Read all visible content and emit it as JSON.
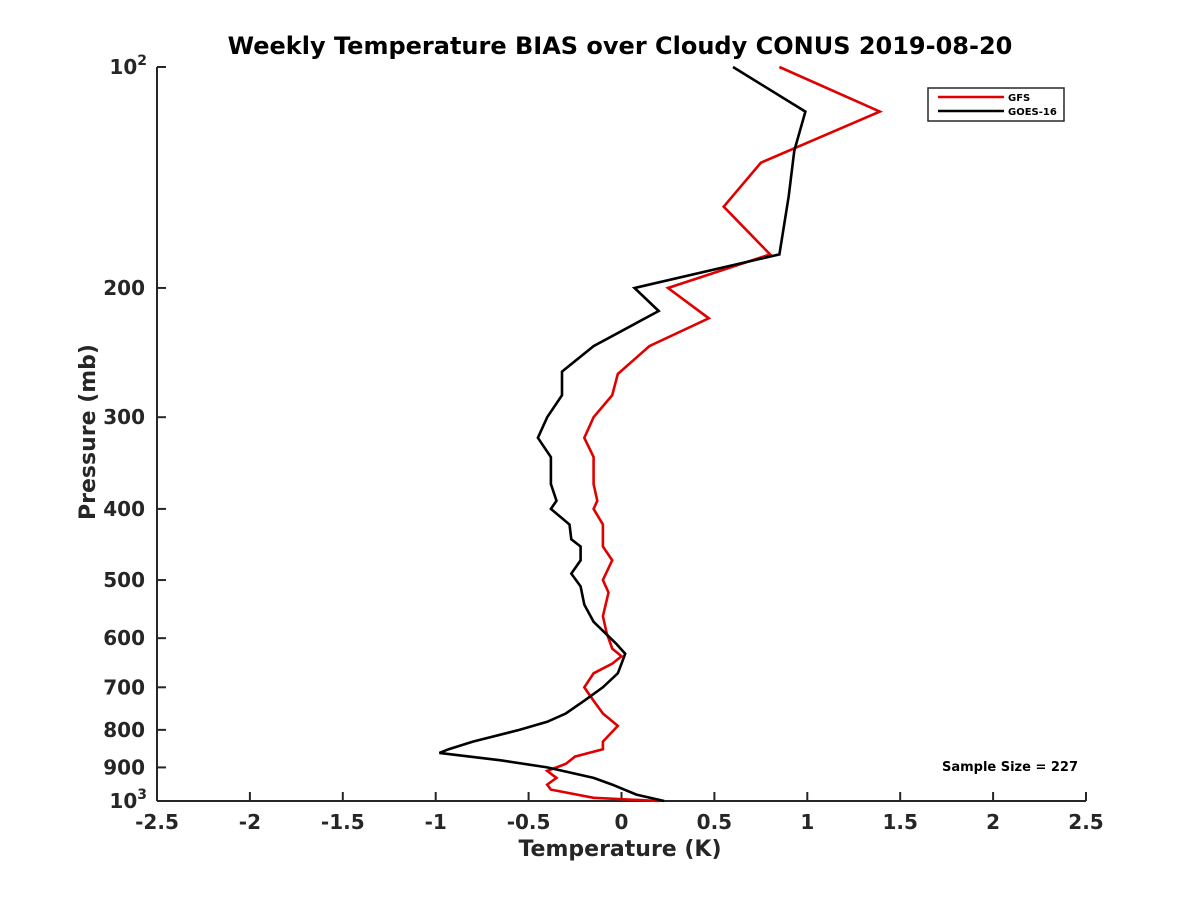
{
  "chart_data": {
    "type": "line",
    "title": "Weekly Temperature BIAS over Cloudy CONUS 2019-08-20",
    "xlabel": "Temperature (K)",
    "ylabel": "Pressure (mb)",
    "xlim": [
      -2.5,
      2.5
    ],
    "ylim": [
      1000,
      100
    ],
    "y_scale": "log",
    "grid": false,
    "legend_position": "top-right",
    "x_ticks": [
      "-2.5",
      "-2",
      "-1.5",
      "-1",
      "-0.5",
      "0",
      "0.5",
      "1",
      "1.5",
      "2",
      "2.5"
    ],
    "y_ticks": [
      {
        "value": 100,
        "label": "10",
        "sup": "2"
      },
      {
        "value": 200,
        "label": "200",
        "sup": ""
      },
      {
        "value": 300,
        "label": "300",
        "sup": ""
      },
      {
        "value": 400,
        "label": "400",
        "sup": ""
      },
      {
        "value": 500,
        "label": "500",
        "sup": ""
      },
      {
        "value": 600,
        "label": "600",
        "sup": ""
      },
      {
        "value": 700,
        "label": "700",
        "sup": ""
      },
      {
        "value": 800,
        "label": "800",
        "sup": ""
      },
      {
        "value": 900,
        "label": "900",
        "sup": ""
      },
      {
        "value": 1000,
        "label": "10",
        "sup": "3"
      }
    ],
    "annotation": "Sample Size = 227",
    "series": [
      {
        "name": "GFS",
        "color": "#e00000",
        "points": [
          [
            0.85,
            100
          ],
          [
            1.39,
            115
          ],
          [
            0.75,
            135
          ],
          [
            0.55,
            155
          ],
          [
            0.8,
            180
          ],
          [
            0.25,
            200
          ],
          [
            0.47,
            220
          ],
          [
            0.15,
            240
          ],
          [
            -0.02,
            262
          ],
          [
            -0.05,
            280
          ],
          [
            -0.15,
            300
          ],
          [
            -0.2,
            320
          ],
          [
            -0.15,
            340
          ],
          [
            -0.15,
            370
          ],
          [
            -0.13,
            390
          ],
          [
            -0.15,
            400
          ],
          [
            -0.1,
            420
          ],
          [
            -0.1,
            450
          ],
          [
            -0.05,
            470
          ],
          [
            -0.1,
            500
          ],
          [
            -0.07,
            520
          ],
          [
            -0.1,
            560
          ],
          [
            -0.08,
            590
          ],
          [
            -0.05,
            620
          ],
          [
            0,
            635
          ],
          [
            -0.05,
            650
          ],
          [
            -0.15,
            670
          ],
          [
            -0.2,
            700
          ],
          [
            -0.15,
            730
          ],
          [
            -0.1,
            760
          ],
          [
            -0.02,
            790
          ],
          [
            -0.1,
            830
          ],
          [
            -0.1,
            850
          ],
          [
            -0.25,
            870
          ],
          [
            -0.3,
            890
          ],
          [
            -0.4,
            910
          ],
          [
            -0.35,
            930
          ],
          [
            -0.4,
            950
          ],
          [
            -0.38,
            965
          ],
          [
            -0.15,
            990
          ],
          [
            0.2,
            1000
          ]
        ]
      },
      {
        "name": "GOES-16",
        "color": "#000000",
        "points": [
          [
            0.6,
            100
          ],
          [
            0.99,
            115
          ],
          [
            0.93,
            130
          ],
          [
            0.9,
            150
          ],
          [
            0.85,
            180
          ],
          [
            0.07,
            200
          ],
          [
            0.2,
            215
          ],
          [
            -0.15,
            240
          ],
          [
            -0.32,
            260
          ],
          [
            -0.32,
            280
          ],
          [
            -0.4,
            300
          ],
          [
            -0.45,
            320
          ],
          [
            -0.38,
            340
          ],
          [
            -0.38,
            370
          ],
          [
            -0.35,
            390
          ],
          [
            -0.38,
            400
          ],
          [
            -0.28,
            420
          ],
          [
            -0.27,
            440
          ],
          [
            -0.22,
            450
          ],
          [
            -0.22,
            470
          ],
          [
            -0.27,
            490
          ],
          [
            -0.22,
            510
          ],
          [
            -0.2,
            540
          ],
          [
            -0.15,
            570
          ],
          [
            -0.03,
            610
          ],
          [
            0.02,
            630
          ],
          [
            0.0,
            650
          ],
          [
            -0.02,
            670
          ],
          [
            -0.1,
            700
          ],
          [
            -0.2,
            730
          ],
          [
            -0.3,
            760
          ],
          [
            -0.4,
            780
          ],
          [
            -0.55,
            800
          ],
          [
            -0.8,
            830
          ],
          [
            -0.93,
            850
          ],
          [
            -0.98,
            860
          ],
          [
            -0.65,
            880
          ],
          [
            -0.4,
            900
          ],
          [
            -0.15,
            930
          ],
          [
            -0.05,
            950
          ],
          [
            0.08,
            980
          ],
          [
            0.23,
            1000
          ]
        ]
      }
    ]
  }
}
